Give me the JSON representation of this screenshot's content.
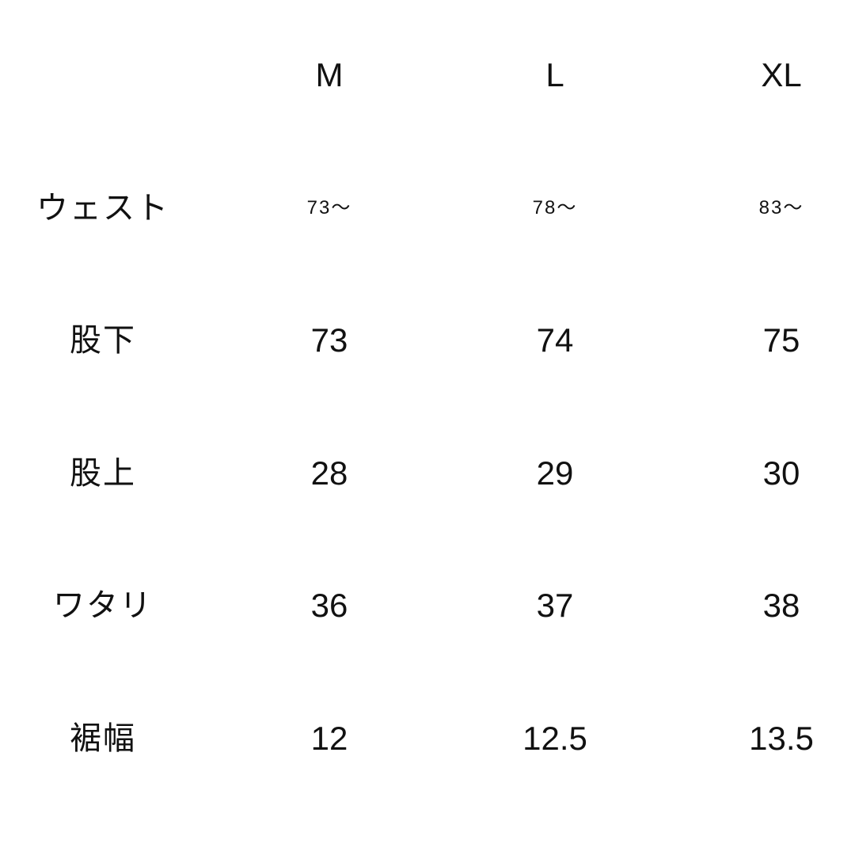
{
  "headers": [
    "M",
    "L",
    "XL"
  ],
  "rows": [
    {
      "label": "ウェスト",
      "values": [
        "73〜",
        "78〜",
        "83〜"
      ]
    },
    {
      "label": "股下",
      "values": [
        "73",
        "74",
        "75"
      ]
    },
    {
      "label": "股上",
      "values": [
        "28",
        "29",
        "30"
      ]
    },
    {
      "label": "ワタリ",
      "values": [
        "36",
        "37",
        "38"
      ]
    },
    {
      "label": "裾幅",
      "values": [
        "12",
        "12.5",
        "13.5"
      ]
    }
  ]
}
